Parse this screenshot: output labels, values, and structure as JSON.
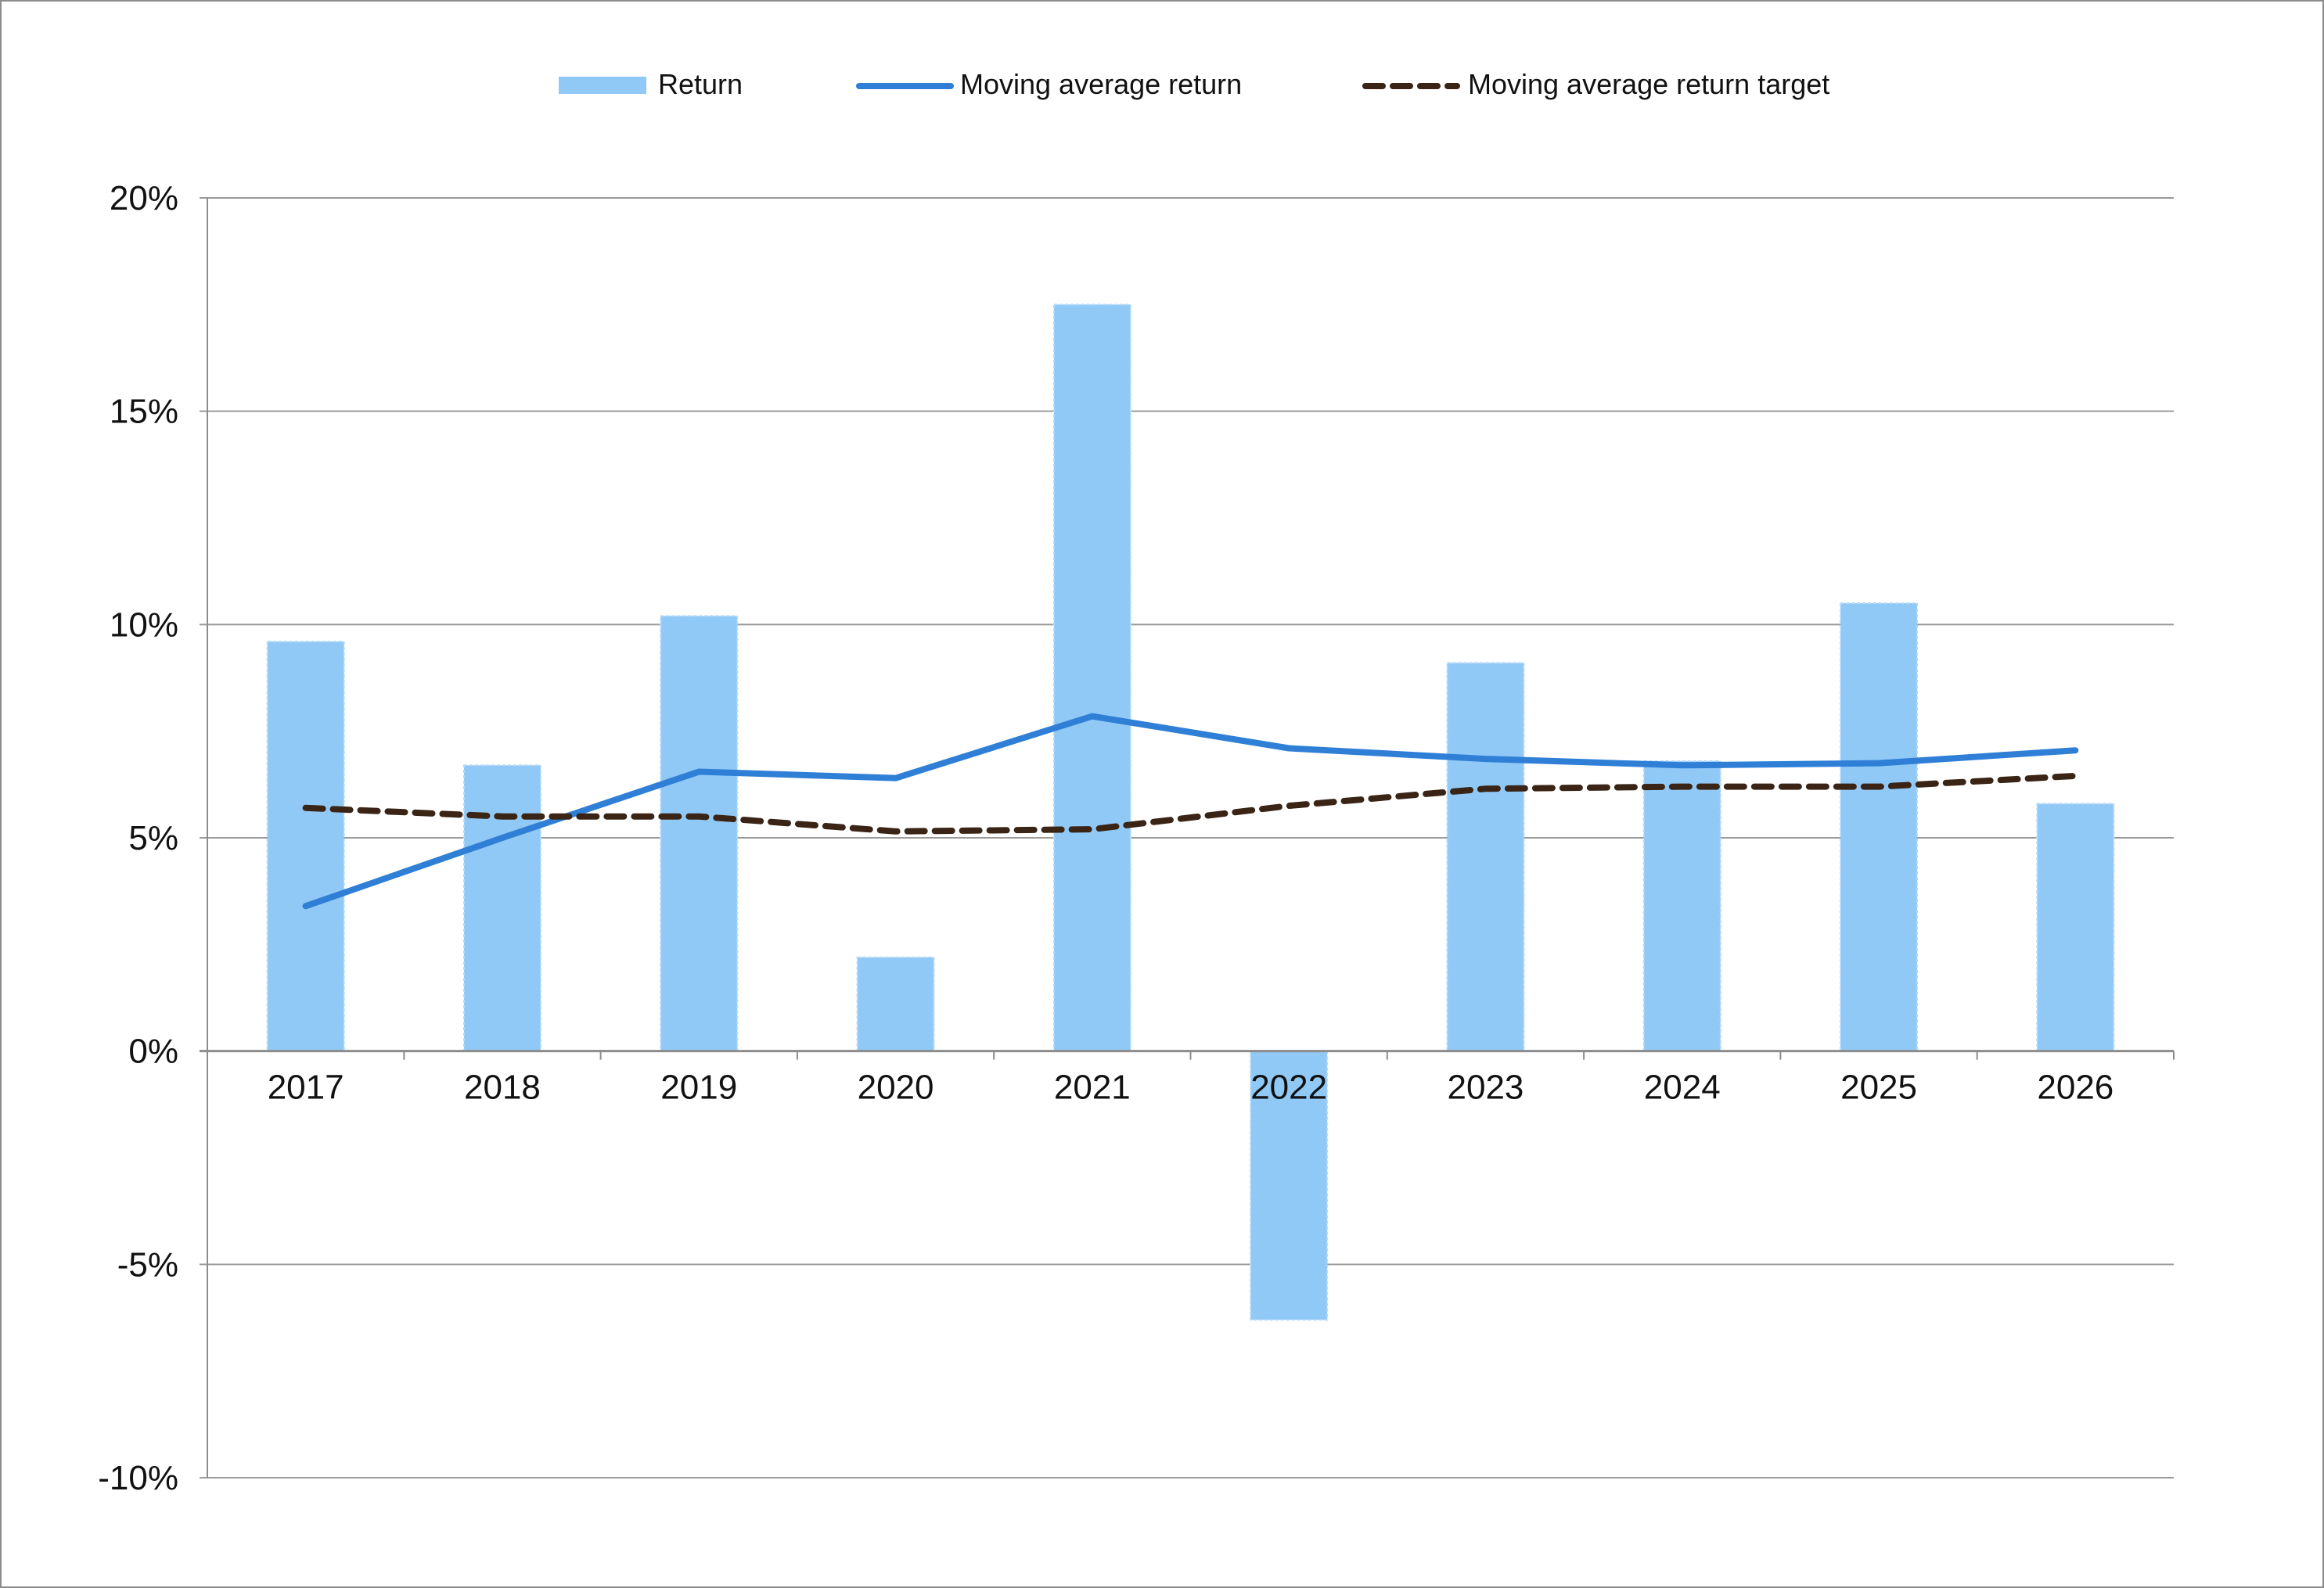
{
  "chart_data": {
    "type": "bar",
    "categories": [
      "2017",
      "2018",
      "2019",
      "2020",
      "2021",
      "2022",
      "2023",
      "2024",
      "2025",
      "2026"
    ],
    "series": [
      {
        "name": "Return",
        "type": "bar",
        "color": "#90c8f6",
        "values": [
          9.6,
          6.7,
          10.2,
          2.2,
          17.5,
          -6.3,
          9.1,
          6.8,
          10.5,
          5.8
        ]
      },
      {
        "name": "Moving average return",
        "type": "line",
        "color": "#2f7fd6",
        "values": [
          3.4,
          5.0,
          6.55,
          6.4,
          7.85,
          7.1,
          6.85,
          6.7,
          6.75,
          7.05
        ]
      },
      {
        "name": "Moving average return target",
        "type": "line-dashed",
        "color": "#3a2415",
        "values": [
          5.7,
          5.5,
          5.5,
          5.15,
          5.2,
          5.75,
          6.15,
          6.2,
          6.2,
          6.45
        ]
      }
    ],
    "title": "",
    "xlabel": "",
    "ylabel": "",
    "ylim": [
      -10,
      20
    ],
    "yticks": [
      20,
      15,
      10,
      5,
      0,
      -5,
      -10
    ],
    "ytick_labels": [
      "20%",
      "15%",
      "10%",
      "5%",
      "0%",
      "-5%",
      "-10%"
    ],
    "grid": true,
    "legend_position": "top-center"
  }
}
